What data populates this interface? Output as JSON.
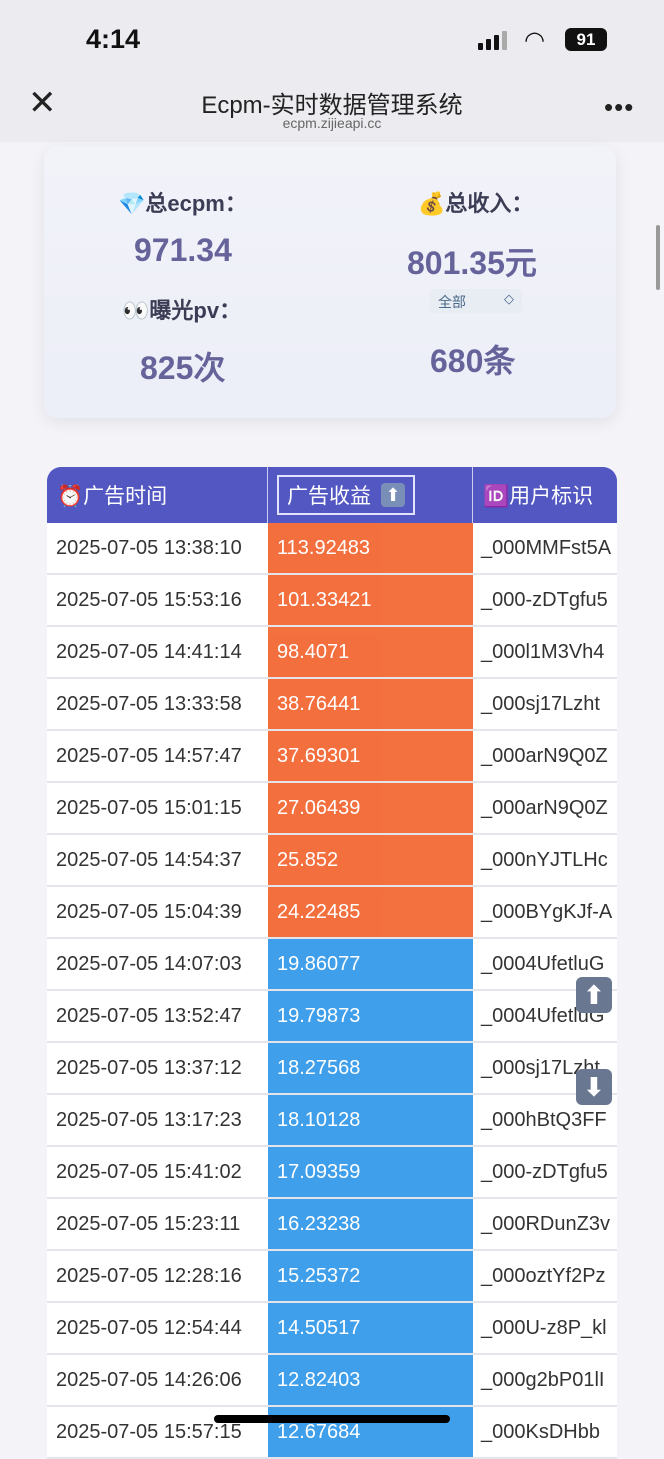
{
  "status_bar": {
    "time": "4:14",
    "battery": "91"
  },
  "header": {
    "title": "Ecpm-实时数据管理系统",
    "url": "ecpm.zijieapi.cc",
    "close_icon": "close-icon",
    "more_icon": "more-icon"
  },
  "stats": {
    "ecpm_label": "💎总ecpm：",
    "ecpm_value": "971.34",
    "income_label": "💰总收入：",
    "income_value": "801.35元",
    "pv_label": "👀曝光pv：",
    "pv_value": "825次",
    "filter_select": "全部",
    "count_value": "680条"
  },
  "table": {
    "headers": [
      "⏰广告时间",
      "广告收益",
      "🆔用户标识"
    ],
    "sort_icon": "arrow-up-icon",
    "colors": {
      "header": "#5257c2",
      "high": "#f2602a",
      "low": "#2b95e8"
    },
    "rows": [
      [
        "2025-07-05 13:38:10",
        "113.92483",
        "_000MMFst5A",
        "high"
      ],
      [
        "2025-07-05 15:53:16",
        "101.33421",
        "_000-zDTgfu5",
        "high"
      ],
      [
        "2025-07-05 14:41:14",
        "98.4071",
        "_000l1M3Vh4",
        "high"
      ],
      [
        "2025-07-05 13:33:58",
        "38.76441",
        "_000sj17Lzht",
        "high"
      ],
      [
        "2025-07-05 14:57:47",
        "37.69301",
        "_000arN9Q0Z",
        "high"
      ],
      [
        "2025-07-05 15:01:15",
        "27.06439",
        "_000arN9Q0Z",
        "high"
      ],
      [
        "2025-07-05 14:54:37",
        "25.852",
        "_000nYJTLHc",
        "high"
      ],
      [
        "2025-07-05 15:04:39",
        "24.22485",
        "_000BYgKJf-A",
        "high"
      ],
      [
        "2025-07-05 14:07:03",
        "19.86077",
        "_0004UfetluG",
        "low"
      ],
      [
        "2025-07-05 13:52:47",
        "19.79873",
        "_0004UfetluG",
        "low"
      ],
      [
        "2025-07-05 13:37:12",
        "18.27568",
        "_000sj17Lzht",
        "low"
      ],
      [
        "2025-07-05 13:17:23",
        "18.10128",
        "_000hBtQ3FF",
        "low"
      ],
      [
        "2025-07-05 15:41:02",
        "17.09359",
        "_000-zDTgfu5",
        "low"
      ],
      [
        "2025-07-05 15:23:11",
        "16.23238",
        "_000RDunZ3v",
        "low"
      ],
      [
        "2025-07-05 12:28:16",
        "15.25372",
        "_000oztYf2Pz",
        "low"
      ],
      [
        "2025-07-05 12:54:44",
        "14.50517",
        "_000U-z8P_kl",
        "low"
      ],
      [
        "2025-07-05 14:26:06",
        "12.82403",
        "_000g2bP01lI",
        "low"
      ],
      [
        "2025-07-05 15:57:15",
        "12.67684",
        "_000KsDHbb",
        "low"
      ]
    ]
  },
  "float_buttons": {
    "up": "⬆",
    "down": "⬇"
  }
}
